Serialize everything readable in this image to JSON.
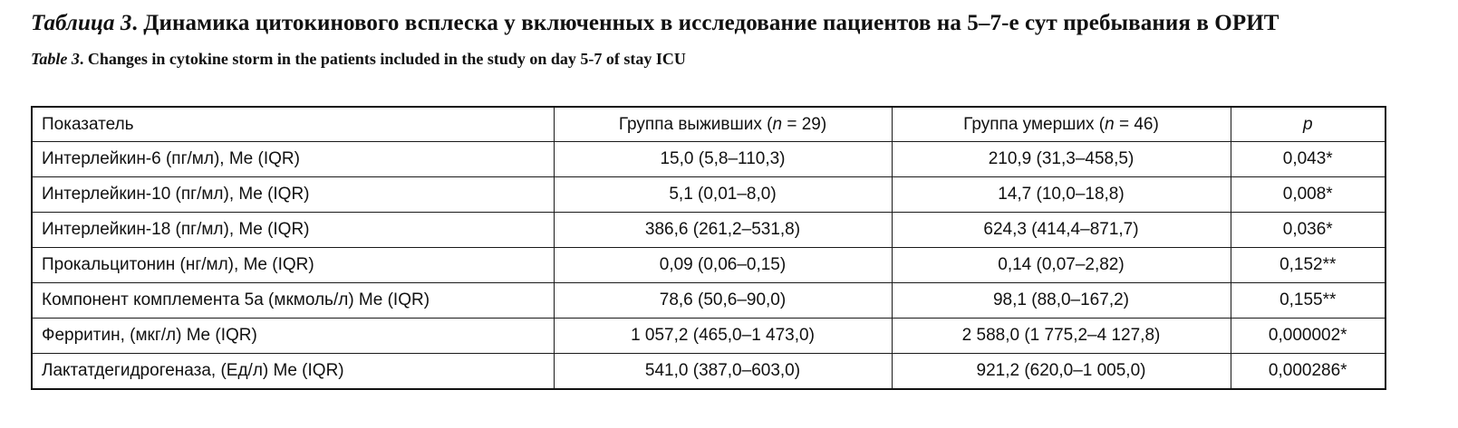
{
  "title_ru": {
    "lead": "Таблица 3",
    "text": ". Динамика цитокинового всплеска у включенных в исследование пациентов на 5–7-е сут пребывания в ОРИТ"
  },
  "title_en": {
    "lead": "Table 3",
    "text": ". Changes in cytokine storm in the patients included in the study on day 5-7 of stay ICU"
  },
  "table": {
    "headers": {
      "indicator": "Показатель",
      "survivors_prefix": "Группа выживших (",
      "survivors_n": "n",
      "survivors_suffix": " = 29)",
      "deceased_prefix": "Группа умерших (",
      "deceased_n": "n",
      "deceased_suffix": " = 46)",
      "p": "p"
    },
    "rows": [
      {
        "indicator": "Интерлейкин-6 (пг/мл), Me (IQR)",
        "survivors": "15,0 (5,8–110,3)",
        "deceased": "210,9 (31,3–458,5)",
        "p": "0,043*"
      },
      {
        "indicator": "Интерлейкин-10 (пг/мл), Me (IQR)",
        "survivors": "5,1 (0,01–8,0)",
        "deceased": "14,7 (10,0–18,8)",
        "p": "0,008*"
      },
      {
        "indicator": "Интерлейкин-18 (пг/мл), Me (IQR)",
        "survivors": "386,6 (261,2–531,8)",
        "deceased": "624,3 (414,4–871,7)",
        "p": "0,036*"
      },
      {
        "indicator": "Прокальцитонин (нг/мл), Me (IQR)",
        "survivors": "0,09 (0,06–0,15)",
        "deceased": "0,14 (0,07–2,82)",
        "p": "0,152**"
      },
      {
        "indicator": "Компонент комплемента 5а (мкмоль/л) Me (IQR)",
        "survivors": "78,6 (50,6–90,0)",
        "deceased": "98,1 (88,0–167,2)",
        "p": "0,155**"
      },
      {
        "indicator": "Ферритин, (мкг/л) Me (IQR)",
        "survivors": "1 057,2 (465,0–1 473,0)",
        "deceased": "2 588,0 (1 775,2–4 127,8)",
        "p": "0,000002*"
      },
      {
        "indicator": "Лактатдегидрогеназа, (Ед/л) Me (IQR)",
        "survivors": "541,0 (387,0–603,0)",
        "deceased": "921,2 (620,0–1 005,0)",
        "p": "0,000286*"
      }
    ]
  }
}
